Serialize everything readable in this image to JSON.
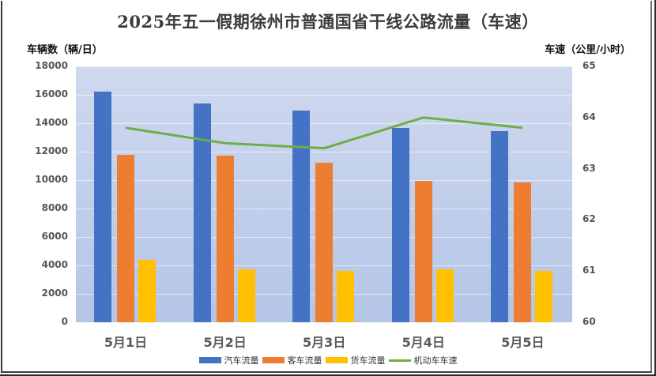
{
  "title": "2025年五一假期徐州市普通国省干线公路流量（车速）",
  "left_axis_title": "车辆数（辆/日）",
  "right_axis_title": "车速（公里/小时）",
  "left_ticks": [
    "0",
    "2000",
    "4000",
    "6000",
    "8000",
    "10000",
    "12000",
    "14000",
    "16000",
    "18000"
  ],
  "right_ticks": [
    "60",
    "61",
    "62",
    "63",
    "64",
    "65"
  ],
  "categories": [
    "5月1日",
    "5月2日",
    "5月3日",
    "5月4日",
    "5月5日"
  ],
  "legend": [
    {
      "label": "汽车流量",
      "color": "#4472c4",
      "type": "bar"
    },
    {
      "label": "客车流量",
      "color": "#ed7d31",
      "type": "bar"
    },
    {
      "label": "货车流量",
      "color": "#ffc000",
      "type": "bar"
    },
    {
      "label": "机动车车速",
      "color": "#70ad47",
      "type": "line"
    }
  ],
  "chart_data": {
    "type": "bar",
    "title": "2025年五一假期徐州市普通国省干线公路流量（车速）",
    "categories": [
      "5月1日",
      "5月2日",
      "5月3日",
      "5月4日",
      "5月5日"
    ],
    "series": [
      {
        "name": "汽车流量",
        "type": "bar",
        "axis": "left",
        "color": "#4472c4",
        "values": [
          16200,
          15400,
          14900,
          13650,
          13450
        ]
      },
      {
        "name": "客车流量",
        "type": "bar",
        "axis": "left",
        "color": "#ed7d31",
        "values": [
          11800,
          11700,
          11200,
          9950,
          9850
        ]
      },
      {
        "name": "货车流量",
        "type": "bar",
        "axis": "left",
        "color": "#ffc000",
        "values": [
          4400,
          3750,
          3600,
          3700,
          3600
        ]
      },
      {
        "name": "机动车车速",
        "type": "line",
        "axis": "right",
        "color": "#70ad47",
        "values": [
          63.8,
          63.5,
          63.4,
          64.0,
          63.8
        ]
      }
    ],
    "ylabel": "车辆数（辆/日）",
    "ylabel_right": "车速（公里/小时）",
    "ylim": [
      0,
      18000
    ],
    "ylim_right": [
      60,
      65
    ],
    "grid": true,
    "legend_position": "bottom"
  }
}
